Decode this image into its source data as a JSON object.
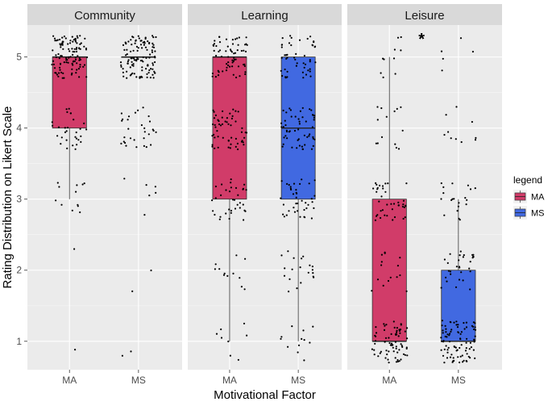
{
  "chart_data": {
    "type": "boxplot",
    "xlabel": "Motivational Factor",
    "ylabel": "Rating Distribution on Likert Scale",
    "ylim": [
      0.6,
      5.45
    ],
    "yticks": [
      1,
      2,
      3,
      4,
      5
    ],
    "categories": [
      "MA",
      "MS"
    ],
    "legend": {
      "title": "legend",
      "placement": "right",
      "entries": [
        {
          "name": "MA",
          "color": "#D13C69"
        },
        {
          "name": "MS",
          "color": "#4169E1"
        }
      ]
    },
    "panels": [
      {
        "label": "Community",
        "annotation": "",
        "boxes": [
          {
            "group": "MA",
            "q1": 4,
            "median": 5,
            "q3": 5,
            "whisker_low": 3,
            "whisker_high": 5,
            "counts": {
              "1": 1,
              "2": 1,
              "3": 12,
              "4": 30,
              "5": 110
            }
          },
          {
            "group": "MS",
            "q1": 5,
            "median": 5,
            "q3": 5,
            "whisker_low": 5,
            "whisker_high": 5,
            "counts": {
              "1": 2,
              "2": 2,
              "3": 6,
              "4": 30,
              "5": 115
            }
          }
        ]
      },
      {
        "label": "Learning",
        "annotation": "",
        "boxes": [
          {
            "group": "MA",
            "q1": 3,
            "median": 5,
            "q3": 5,
            "whisker_low": 1,
            "whisker_high": 5,
            "counts": {
              "1": 8,
              "2": 12,
              "3": 35,
              "4": 55,
              "5": 65
            }
          },
          {
            "group": "MS",
            "q1": 3,
            "median": 4,
            "q3": 5,
            "whisker_low": 1,
            "whisker_high": 5,
            "counts": {
              "1": 12,
              "2": 20,
              "3": 40,
              "4": 55,
              "5": 50
            }
          }
        ]
      },
      {
        "label": "Leisure",
        "annotation": "*",
        "boxes": [
          {
            "group": "MA",
            "q1": 1,
            "median": 1,
            "q3": 3,
            "whisker_low": 1,
            "whisker_high": 5,
            "counts": {
              "1": 70,
              "2": 15,
              "3": 40,
              "4": 14,
              "5": 10
            }
          },
          {
            "group": "MS",
            "q1": 1,
            "median": 1,
            "q3": 2,
            "whisker_low": 1,
            "whisker_high": 3,
            "counts": {
              "1": 90,
              "2": 30,
              "3": 20,
              "4": 10,
              "5": 5
            }
          }
        ]
      }
    ]
  }
}
